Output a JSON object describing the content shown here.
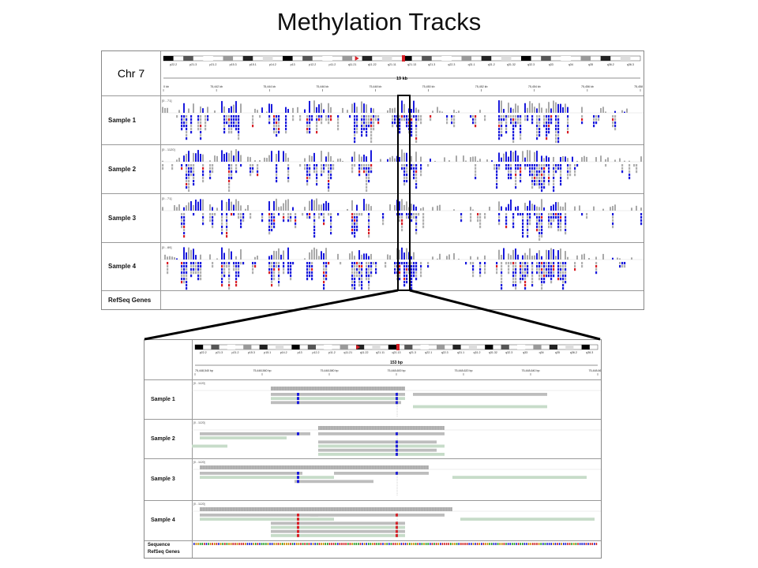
{
  "title": "Methylation Tracks",
  "overview": {
    "chromosome_label": "Chr 7",
    "span_label": "19 kb",
    "bands": [
      "p22.2",
      "p21.3",
      "p21.2",
      "p15.3",
      "p15.1",
      "p14.2",
      "p13",
      "p12.2",
      "p11.2",
      "q11.21",
      "q11.22",
      "q21.11",
      "q21.13",
      "q21.3",
      "q22.3",
      "q31.1",
      "q31.2",
      "q31.32",
      "q32.3",
      "q33",
      "q34",
      "q35",
      "q36.2",
      "q36.3"
    ],
    "ticks": [
      "0 kb",
      "75,442 kb",
      "75,444 kb",
      "75,446 kb",
      "75,448 kb",
      "75,450 kb",
      "75,452 kb",
      "75,454 kb",
      "75,456 kb",
      "75,458 kb"
    ],
    "samples": [
      {
        "label": "Sample 1",
        "range": "[0 - 71]"
      },
      {
        "label": "Sample 2",
        "range": "[0 - 1120]"
      },
      {
        "label": "Sample 3",
        "range": "[0 - 71]"
      },
      {
        "label": "Sample 4",
        "range": "[0 - 89]"
      }
    ],
    "genes_label": "RefSeq Genes"
  },
  "zoom": {
    "span_label": "153 bp",
    "bands": [
      "p22.2",
      "p21.3",
      "p21.2",
      "p15.3",
      "p15.1",
      "p14.2",
      "p13",
      "p12.2",
      "p11.2",
      "q11.21",
      "q11.22",
      "q21.11",
      "q21.13",
      "q21.3",
      "q22.1",
      "q22.3",
      "q31.1",
      "q31.2",
      "q31.32",
      "q32.3",
      "q33",
      "q34",
      "q35",
      "q36.2",
      "q36.3"
    ],
    "ticks": [
      "75,448,540 bp",
      "75,448,560 bp",
      "75,448,580 bp",
      "75,448,600 bp",
      "75,448,620 bp",
      "75,448,640 bp",
      "75,448,660 bp"
    ],
    "samples": [
      {
        "label": "Sample 1",
        "range": "[0 - 1120]"
      },
      {
        "label": "Sample 2",
        "range": "[0 - 1120]"
      },
      {
        "label": "Sample 3",
        "range": "[0 - 1120]"
      },
      {
        "label": "Sample 4",
        "range": "[0 - 1120]"
      }
    ],
    "sequence_label": "Sequence",
    "genes_label": "RefSeq Genes"
  },
  "colors": {
    "methylated": "#1a1adc",
    "unmethylated": "#b0b0b0",
    "mismatch": "#d81f26",
    "read_fill": "#c7dcc9",
    "coverage": "#a9a9a9",
    "selection": "#000000"
  }
}
